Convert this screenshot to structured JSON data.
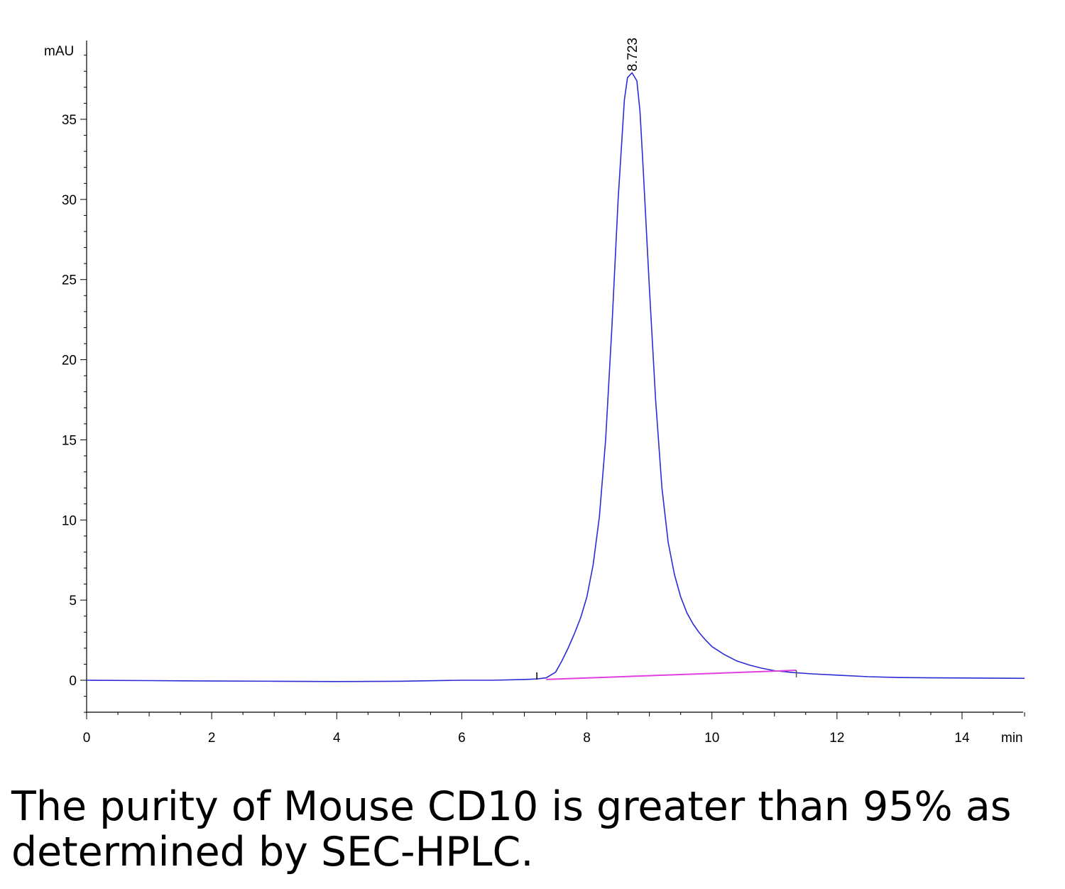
{
  "caption": "The purity of Mouse CD10 is greater than 95% as determined by SEC-HPLC.",
  "colors": {
    "signal": "#2b2bd6",
    "baseline": "#e040e0",
    "axis": "#000000"
  },
  "chart_data": {
    "type": "line",
    "title": "",
    "xlabel": "min",
    "ylabel": "mAU",
    "xlim": [
      0,
      15
    ],
    "ylim": [
      -2,
      40
    ],
    "x_ticks": [
      0,
      2,
      4,
      6,
      8,
      10,
      12,
      14
    ],
    "y_ticks": [
      0,
      5,
      10,
      15,
      20,
      25,
      30,
      35
    ],
    "grid": false,
    "peak": {
      "x": 8.723,
      "y": 37.9,
      "label": "8.723"
    },
    "series": [
      {
        "role": "signal",
        "x": [
          0,
          1,
          2,
          3,
          4,
          5,
          6,
          6.5,
          7,
          7.2,
          7.35,
          7.5,
          7.6,
          7.7,
          7.8,
          7.9,
          8.0,
          8.1,
          8.2,
          8.3,
          8.4,
          8.5,
          8.6,
          8.65,
          8.723,
          8.8,
          8.85,
          8.9,
          9.0,
          9.1,
          9.2,
          9.3,
          9.4,
          9.5,
          9.6,
          9.7,
          9.8,
          9.9,
          10.0,
          10.2,
          10.4,
          10.6,
          10.8,
          11.0,
          11.3,
          11.6,
          12.0,
          12.5,
          13.0,
          13.5,
          14.0,
          14.5,
          15.0
        ],
        "y": [
          0,
          -0.02,
          -0.05,
          -0.06,
          -0.08,
          -0.06,
          0,
          0,
          0.05,
          0.08,
          0.15,
          0.5,
          1.2,
          2.0,
          2.9,
          3.9,
          5.2,
          7.2,
          10.2,
          15.0,
          22.0,
          30.0,
          36.2,
          37.6,
          37.9,
          37.4,
          35.5,
          32.0,
          24.5,
          17.5,
          12.0,
          8.6,
          6.6,
          5.2,
          4.2,
          3.5,
          2.95,
          2.5,
          2.1,
          1.6,
          1.2,
          0.95,
          0.75,
          0.6,
          0.48,
          0.4,
          0.32,
          0.22,
          0.17,
          0.15,
          0.14,
          0.13,
          0.12
        ]
      },
      {
        "role": "integration-baseline",
        "x": [
          7.35,
          11.35
        ],
        "y": [
          0.05,
          0.62
        ]
      }
    ]
  }
}
